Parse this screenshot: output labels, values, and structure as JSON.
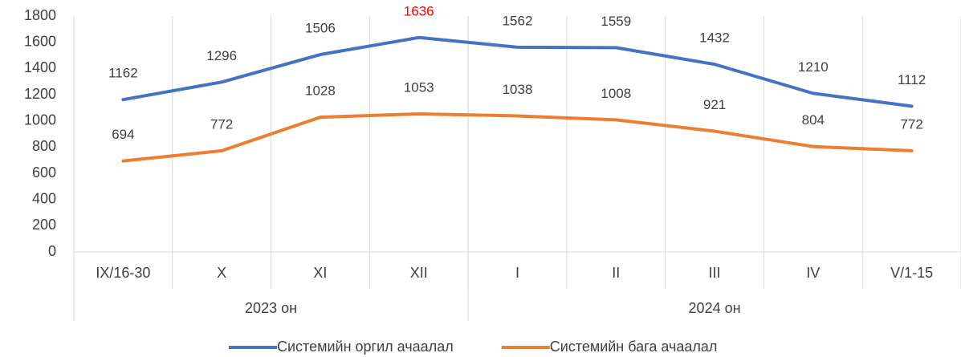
{
  "chart_data": {
    "type": "line",
    "categories": [
      "IX/16-30",
      "X",
      "XI",
      "XII",
      "I",
      "II",
      "III",
      "IV",
      "V/1-15"
    ],
    "groups": [
      {
        "label": "2023 он",
        "span": 4
      },
      {
        "label": "2024 он",
        "span": 5
      }
    ],
    "series": [
      {
        "name": "Системийн оргил ачаалал",
        "color": "#4472c4",
        "values": [
          1162,
          1296,
          1506,
          1636,
          1562,
          1559,
          1432,
          1210,
          1112
        ],
        "value_label_colors": [
          "#404040",
          "#404040",
          "#404040",
          "#ff0000",
          "#404040",
          "#404040",
          "#404040",
          "#404040",
          "#404040"
        ]
      },
      {
        "name": "Системийн бага ачаалал",
        "color": "#ed7d31",
        "values": [
          694,
          772,
          1028,
          1053,
          1038,
          1008,
          921,
          804,
          772
        ]
      }
    ],
    "ylim": [
      0,
      1800
    ],
    "yticks": [
      0,
      200,
      400,
      600,
      800,
      1000,
      1200,
      1400,
      1600,
      1800
    ],
    "legend": "bottom"
  }
}
